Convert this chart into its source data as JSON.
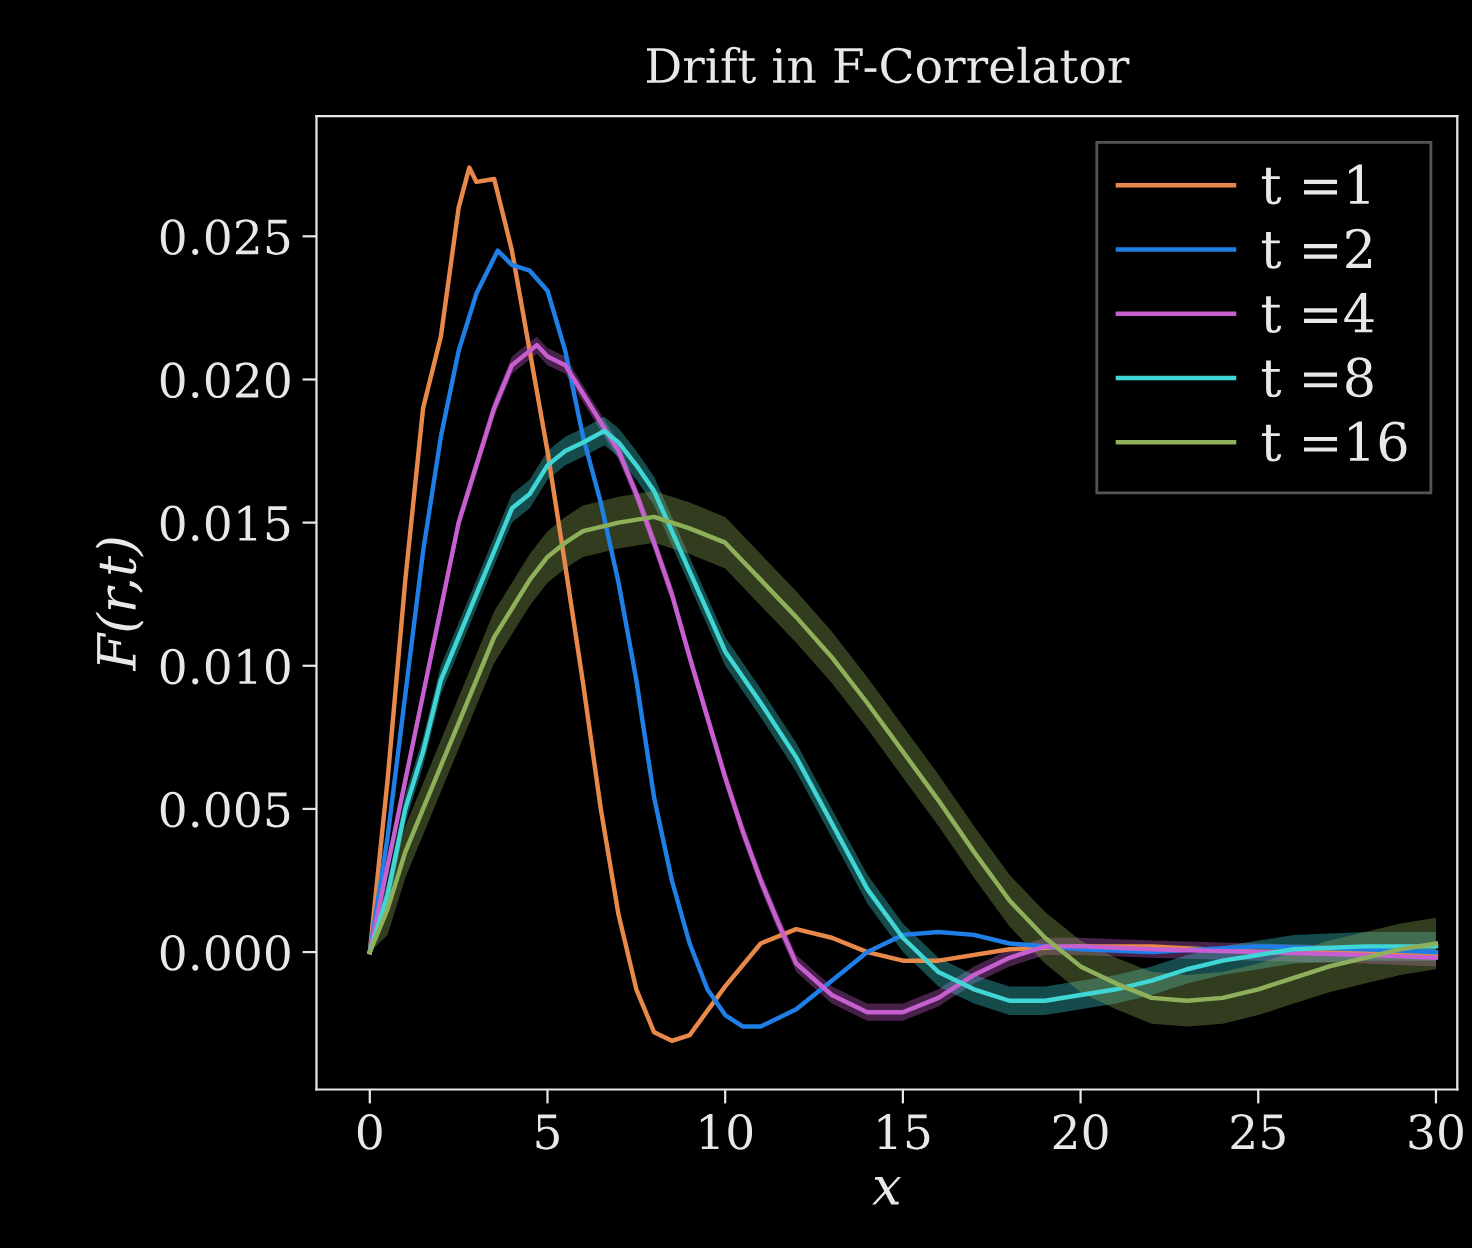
{
  "chart_data": {
    "type": "line",
    "title": "Drift in F-Correlator",
    "xlabel": "x",
    "ylabel": "F(r,t)",
    "xlim": [
      -1.5,
      30.6
    ],
    "ylim": [
      -0.0048,
      0.0292
    ],
    "xticks": [
      0,
      5,
      10,
      15,
      20,
      25,
      30
    ],
    "yticks": [
      {
        "value": 0,
        "label": "0.000"
      },
      {
        "value": 0.005,
        "label": "0.005"
      },
      {
        "value": 0.01,
        "label": "0.010"
      },
      {
        "value": 0.015,
        "label": "0.015"
      },
      {
        "value": 0.02,
        "label": "0.020"
      },
      {
        "value": 0.025,
        "label": "0.025"
      }
    ],
    "grid": false,
    "legend": "top right",
    "marker": "none",
    "line_style": "solid",
    "series": [
      {
        "name": "t =1",
        "color": "#e8884a",
        "x": [
          0,
          0.5,
          1,
          1.5,
          2,
          2.5,
          2.8,
          3,
          3.5,
          4,
          4.5,
          5,
          5.5,
          6,
          6.5,
          7,
          7.5,
          8,
          8.5,
          9,
          10,
          11,
          12,
          13,
          14,
          15,
          16,
          18,
          20,
          22,
          25,
          28,
          30
        ],
        "values": [
          0,
          0.006,
          0.013,
          0.019,
          0.0215,
          0.026,
          0.0274,
          0.0269,
          0.027,
          0.0245,
          0.021,
          0.0175,
          0.0135,
          0.0094,
          0.005,
          0.0013,
          -0.0013,
          -0.0028,
          -0.0031,
          -0.0029,
          -0.0012,
          0.0003,
          0.0008,
          0.0005,
          0,
          -0.0003,
          -0.0003,
          0.0001,
          0.0002,
          0.0002,
          0,
          0,
          -0.0001
        ]
      },
      {
        "name": "t =2",
        "color": "#1f7fe6",
        "x": [
          0,
          0.5,
          1,
          1.5,
          2,
          2.5,
          3,
          3.6,
          4,
          4.5,
          5,
          5.5,
          6,
          6.5,
          7,
          7.5,
          8,
          8.5,
          9,
          9.5,
          10,
          10.5,
          11,
          12,
          13,
          14,
          15,
          16,
          17,
          18,
          20,
          22,
          25,
          28,
          30
        ],
        "values": [
          0,
          0.004,
          0.009,
          0.014,
          0.018,
          0.021,
          0.023,
          0.0245,
          0.024,
          0.0238,
          0.0231,
          0.021,
          0.018,
          0.0157,
          0.0129,
          0.0095,
          0.0054,
          0.0025,
          0.0003,
          -0.0013,
          -0.0022,
          -0.0026,
          -0.0026,
          -0.002,
          -0.001,
          0,
          0.0006,
          0.0007,
          0.0006,
          0.0003,
          0.0001,
          0,
          0.0002,
          0.0001,
          0
        ]
      },
      {
        "name": "t =4",
        "color": "#c85fd0",
        "x": [
          0,
          0.5,
          1,
          1.5,
          2,
          2.5,
          3,
          3.5,
          4,
          4.7,
          5,
          5.5,
          6,
          6.5,
          7,
          7.5,
          8,
          8.5,
          9,
          9.5,
          10,
          10.5,
          11,
          11.5,
          12,
          13,
          14,
          15,
          16,
          17,
          18,
          19,
          20,
          22,
          25,
          28,
          30
        ],
        "values": [
          0,
          0.003,
          0.006,
          0.009,
          0.012,
          0.015,
          0.017,
          0.019,
          0.0205,
          0.0212,
          0.0208,
          0.0205,
          0.0195,
          0.0185,
          0.0175,
          0.016,
          0.0143,
          0.0125,
          0.0103,
          0.0082,
          0.0061,
          0.0042,
          0.0025,
          0.001,
          -0.0004,
          -0.0015,
          -0.0021,
          -0.0021,
          -0.0016,
          -0.0008,
          -0.0002,
          0.0002,
          0.0002,
          0.0001,
          0,
          -0.0001,
          -0.0002
        ],
        "lower": [
          0,
          0.0027,
          0.0057,
          0.0087,
          0.0117,
          0.0147,
          0.0167,
          0.0187,
          0.0202,
          0.0209,
          0.0205,
          0.0202,
          0.0192,
          0.0182,
          0.0172,
          0.0157,
          0.014,
          0.0122,
          0.01,
          0.0079,
          0.0058,
          0.0039,
          0.0022,
          0.0007,
          -0.0007,
          -0.0018,
          -0.0024,
          -0.0024,
          -0.0019,
          -0.0011,
          -0.0005,
          -0.0001,
          -0.0001,
          -0.0002,
          -0.0003,
          -0.0004,
          -0.0005
        ],
        "upper": [
          0,
          0.0033,
          0.0063,
          0.0093,
          0.0123,
          0.0153,
          0.0173,
          0.0193,
          0.0208,
          0.0215,
          0.0211,
          0.0208,
          0.0198,
          0.0188,
          0.0178,
          0.0163,
          0.0146,
          0.0128,
          0.0106,
          0.0085,
          0.0064,
          0.0045,
          0.0028,
          0.0013,
          -0.0001,
          -0.0012,
          -0.0018,
          -0.0018,
          -0.0013,
          -0.0005,
          0.0001,
          0.0005,
          0.0005,
          0.0004,
          0.0003,
          0.0002,
          0.0001
        ]
      },
      {
        "name": "t =8",
        "color": "#40d6d6",
        "x": [
          0,
          0.5,
          1,
          1.5,
          2,
          2.5,
          3,
          3.5,
          4,
          4.5,
          5,
          5.5,
          6,
          6.6,
          7,
          7.5,
          8,
          9,
          10,
          11,
          12,
          13,
          14,
          15,
          16,
          17,
          18,
          19,
          20,
          21,
          22,
          23,
          24,
          25,
          26,
          28,
          30
        ],
        "values": [
          0,
          0.002,
          0.005,
          0.007,
          0.0095,
          0.011,
          0.0125,
          0.014,
          0.0155,
          0.016,
          0.017,
          0.0175,
          0.0178,
          0.0182,
          0.0178,
          0.017,
          0.0161,
          0.0133,
          0.0105,
          0.0087,
          0.0068,
          0.0045,
          0.0022,
          0.0005,
          -0.0007,
          -0.0013,
          -0.0017,
          -0.0017,
          -0.0015,
          -0.0013,
          -0.001,
          -0.0006,
          -0.0003,
          -0.0001,
          0.0001,
          0.0002,
          0.0002
        ],
        "lower": [
          0,
          0.0015,
          0.0045,
          0.0065,
          0.009,
          0.0105,
          0.012,
          0.0135,
          0.015,
          0.0155,
          0.0165,
          0.017,
          0.0173,
          0.0177,
          0.0173,
          0.0165,
          0.0156,
          0.0128,
          0.01,
          0.0082,
          0.0063,
          0.004,
          0.0017,
          0,
          -0.0012,
          -0.0018,
          -0.0022,
          -0.0022,
          -0.002,
          -0.0018,
          -0.0015,
          -0.0011,
          -0.0008,
          -0.0006,
          -0.0004,
          -0.0003,
          -0.0003
        ],
        "upper": [
          0,
          0.0025,
          0.0055,
          0.0075,
          0.01,
          0.0115,
          0.013,
          0.0145,
          0.016,
          0.0165,
          0.0175,
          0.018,
          0.0183,
          0.0187,
          0.0183,
          0.0175,
          0.0166,
          0.0138,
          0.011,
          0.0092,
          0.0073,
          0.005,
          0.0027,
          0.001,
          -0.0002,
          -0.0008,
          -0.0012,
          -0.0012,
          -0.001,
          -0.0008,
          -0.0005,
          -0.0001,
          0.0002,
          0.0004,
          0.0006,
          0.0007,
          0.0007
        ]
      },
      {
        "name": "t =16",
        "color": "#8fb05a",
        "x": [
          0,
          0.5,
          1,
          1.5,
          2,
          2.5,
          3,
          3.5,
          4,
          4.5,
          5,
          5.5,
          6,
          7,
          8,
          9,
          10,
          11,
          12,
          13,
          14,
          15,
          16,
          17,
          18,
          19,
          20,
          21,
          22,
          23,
          24,
          25,
          26,
          27,
          28,
          29,
          30
        ],
        "values": [
          0,
          0.0015,
          0.0035,
          0.005,
          0.0065,
          0.008,
          0.0095,
          0.011,
          0.012,
          0.013,
          0.0138,
          0.0143,
          0.0147,
          0.015,
          0.0152,
          0.0148,
          0.0143,
          0.013,
          0.0117,
          0.0103,
          0.0087,
          0.007,
          0.0053,
          0.0035,
          0.0018,
          0.0005,
          -0.0005,
          -0.0011,
          -0.0016,
          -0.0017,
          -0.0016,
          -0.0013,
          -0.0009,
          -0.0005,
          -0.0002,
          0.0001,
          0.0003
        ],
        "lower": [
          0,
          0.0006,
          0.0026,
          0.0041,
          0.0056,
          0.0071,
          0.0086,
          0.0101,
          0.0111,
          0.0121,
          0.0129,
          0.0134,
          0.0138,
          0.0141,
          0.0143,
          0.0139,
          0.0134,
          0.0121,
          0.0108,
          0.0094,
          0.0078,
          0.0061,
          0.0044,
          0.0026,
          0.0009,
          -0.0004,
          -0.0014,
          -0.002,
          -0.0025,
          -0.0026,
          -0.0025,
          -0.0022,
          -0.0018,
          -0.0014,
          -0.0011,
          -0.0008,
          -0.0006
        ],
        "upper": [
          0,
          0.0024,
          0.0044,
          0.0059,
          0.0074,
          0.0089,
          0.0104,
          0.0119,
          0.0129,
          0.0139,
          0.0147,
          0.0152,
          0.0156,
          0.0159,
          0.0161,
          0.0157,
          0.0152,
          0.0139,
          0.0126,
          0.0112,
          0.0096,
          0.0079,
          0.0062,
          0.0044,
          0.0027,
          0.0014,
          0.0004,
          -0.0002,
          -0.0007,
          -0.0008,
          -0.0007,
          -0.0004,
          0,
          0.0004,
          0.0007,
          0.001,
          0.0012
        ]
      }
    ]
  }
}
